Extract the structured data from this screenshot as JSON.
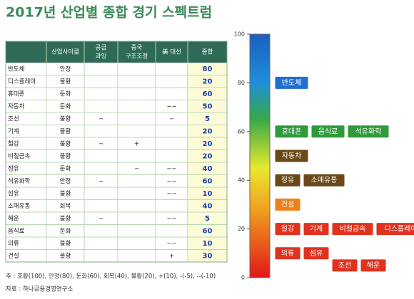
{
  "title": "2017년 산업별 종합 경기 스펙트럼",
  "table": {
    "header": [
      [
        "산업사이클"
      ],
      [
        "공급",
        "과잉"
      ],
      [
        "중국",
        "구조조정"
      ],
      [
        "美 대선"
      ],
      [
        "종합"
      ]
    ],
    "rows": [
      [
        "반도체",
        "안정",
        "",
        "",
        "",
        "80"
      ],
      [
        "디스플레이",
        "불황",
        "",
        "",
        "",
        "20"
      ],
      [
        "휴대폰",
        "둔화",
        "",
        "",
        "",
        "60"
      ],
      [
        "자동차",
        "둔화",
        "",
        "",
        "−−",
        "50"
      ],
      [
        "조선",
        "불황",
        "−",
        "",
        "−",
        "5"
      ],
      [
        "기계",
        "불황",
        "",
        "",
        "",
        "20"
      ],
      [
        "철강",
        "불황",
        "−",
        "+",
        "",
        "20"
      ],
      [
        "비철금속",
        "불황",
        "",
        "",
        "",
        "20"
      ],
      [
        "정유",
        "둔화",
        "",
        "−",
        "−−",
        "40"
      ],
      [
        "석유화학",
        "안정",
        "−",
        "",
        "−−",
        "60"
      ],
      [
        "섬유",
        "불황",
        "",
        "",
        "−−",
        "10"
      ],
      [
        "소매유통",
        "회복",
        "",
        "",
        "",
        "40"
      ],
      [
        "해운",
        "불황",
        "−",
        "",
        "−−",
        "5"
      ],
      [
        "음식료",
        "둔화",
        "",
        "",
        "",
        "60"
      ],
      [
        "의류",
        "불황",
        "",
        "",
        "−−",
        "10"
      ],
      [
        "건설",
        "불황",
        "",
        "",
        "+",
        "30"
      ]
    ]
  },
  "spectrum": {
    "ylim": [
      0,
      100
    ],
    "yticks": [
      0,
      20,
      40,
      60,
      80,
      100
    ],
    "labels": [
      {
        "text": "반도체",
        "value": 80,
        "color": "#1f6fd0"
      },
      {
        "text": "휴대폰",
        "value": 60,
        "color": "#2f9a3a"
      },
      {
        "text": "음식료",
        "value": 60,
        "color": "#2f9a3a"
      },
      {
        "text": "석유화학",
        "value": 60,
        "color": "#2f9a3a"
      },
      {
        "text": "자동차",
        "value": 50,
        "color": "#6a4818"
      },
      {
        "text": "정유",
        "value": 40,
        "color": "#6a4818"
      },
      {
        "text": "소매유통",
        "value": 40,
        "color": "#6a4818"
      },
      {
        "text": "건설",
        "value": 30,
        "color": "#f0801c"
      },
      {
        "text": "철강",
        "value": 20,
        "color": "#e0321e"
      },
      {
        "text": "기계",
        "value": 20,
        "color": "#e0321e"
      },
      {
        "text": "비철금속",
        "value": 20,
        "color": "#e0321e"
      },
      {
        "text": "디스플레이",
        "value": 20,
        "color": "#e0321e"
      },
      {
        "text": "의류",
        "value": 10,
        "color": "#e0321e"
      },
      {
        "text": "섬유",
        "value": 10,
        "color": "#e0321e"
      },
      {
        "text": "조선",
        "value": 5,
        "color": "#e0321e"
      },
      {
        "text": "해운",
        "value": 5,
        "color": "#e0321e"
      }
    ]
  },
  "notes": [
    "주 : 호황(100), 안정(80), 둔화(60), 회복(40), 불황(20), +(10), -(-5), --(-10)",
    "자료 : 하나금융경영연구소"
  ]
}
